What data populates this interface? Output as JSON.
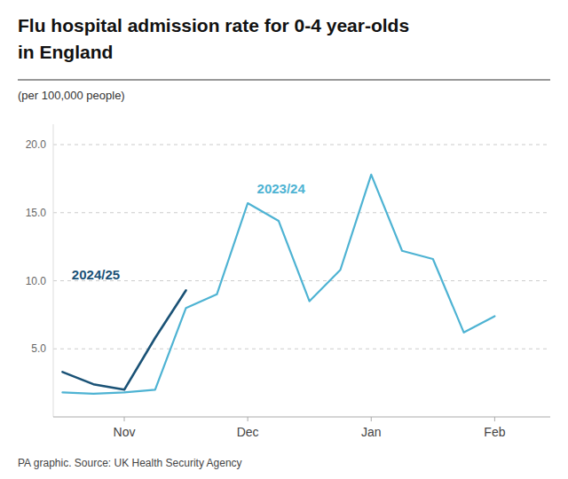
{
  "chart_data": {
    "type": "line",
    "title": [
      "Flu hospital admission rate for 0-4 year-olds",
      "in England"
    ],
    "subtitle": "(per 100,000 people)",
    "source": "PA graphic. Source: UK Health Security Agency",
    "x": [
      0,
      1,
      2,
      3,
      4,
      5,
      6,
      7,
      8,
      9,
      10,
      11,
      12,
      13,
      14
    ],
    "series": [
      {
        "color": "#4eb3d3",
        "values": [
          1.8,
          1.7,
          1.8,
          2.0,
          8.0,
          9.0,
          15.7,
          14.4,
          8.5,
          10.8,
          17.8,
          12.2,
          11.6,
          6.2,
          7.4
        ]
      },
      {
        "color": "#1a5276",
        "values": [
          3.3,
          2.4,
          2.0,
          5.8,
          9.3,
          null,
          null,
          null,
          null,
          null,
          null,
          null,
          null,
          null,
          null
        ]
      }
    ],
    "annotations": [
      {
        "text": "2023/24",
        "x": 6.3,
        "y": 16.4,
        "color": "#4eb3d3"
      },
      {
        "text": "2024/25",
        "x": 0.3,
        "y": 10.1,
        "color": "#1a5276"
      }
    ],
    "xlim": [
      -0.3,
      15.8
    ],
    "xticks": [
      {
        "value": 2,
        "label": "Nov"
      },
      {
        "value": 6,
        "label": "Dec"
      },
      {
        "value": 10,
        "label": "Jan"
      },
      {
        "value": 14,
        "label": "Feb"
      }
    ],
    "ylim": [
      0,
      21.5
    ],
    "yticks": [
      {
        "value": 5.0,
        "label": "5.0"
      },
      {
        "value": 10.0,
        "label": "10.0"
      },
      {
        "value": 15.0,
        "label": "15.0"
      },
      {
        "value": 20.0,
        "label": "20.0"
      }
    ],
    "grid": true
  }
}
